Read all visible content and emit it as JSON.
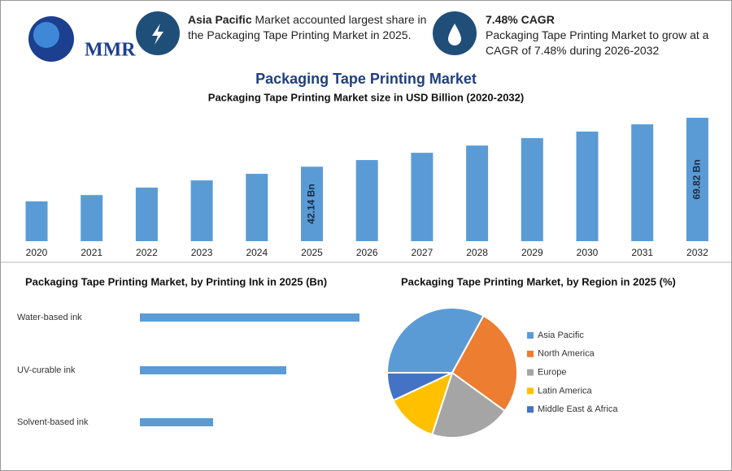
{
  "header": {
    "logo": "MMR",
    "left_bold": "Asia Pacific",
    "left_text": "Market accounted largest share in the Packaging Tape Printing Market in 2025.",
    "right_bold": "7.48% CAGR",
    "right_text": "Packaging Tape Printing Market to grow at a CAGR of 7.48% during 2026-2032"
  },
  "chart_data": [
    {
      "type": "bar",
      "title": "Packaging Tape Printing Market",
      "subtitle": "Packaging Tape Printing Market size in USD Billion (2020-2032)",
      "categories": [
        "2020",
        "2021",
        "2022",
        "2023",
        "2024",
        "2025",
        "2026",
        "2027",
        "2028",
        "2029",
        "2030",
        "2031",
        "2032"
      ],
      "values": [
        22.5,
        26.1,
        30.3,
        34.4,
        38.1,
        42.14,
        45.9,
        50.0,
        54.1,
        58.3,
        62.0,
        66.1,
        69.82
      ],
      "value_labels": [
        null,
        null,
        null,
        null,
        null,
        "42.14 Bn",
        null,
        null,
        null,
        null,
        null,
        null,
        "69.82 Bn"
      ],
      "color": "#5b9bd5"
    },
    {
      "type": "hbar",
      "title": "Packaging Tape Printing Market, by Printing Ink in 2025 (Bn)",
      "categories": [
        "Water-based ink",
        "UV-curable ink",
        "Solvent-based ink"
      ],
      "values": [
        21,
        14,
        7
      ],
      "color": "#5b9bd5"
    },
    {
      "type": "pie",
      "title": "Packaging Tape Printing Market, by Region in 2025 (%)",
      "categories": [
        "Asia Pacific",
        "North America",
        "Europe",
        "Latin America",
        "Middle East & Africa"
      ],
      "values": [
        33,
        27,
        20,
        13,
        7
      ],
      "colors": [
        "#5b9bd5",
        "#ed7d31",
        "#a5a5a5",
        "#ffc000",
        "#4472c4"
      ]
    }
  ]
}
